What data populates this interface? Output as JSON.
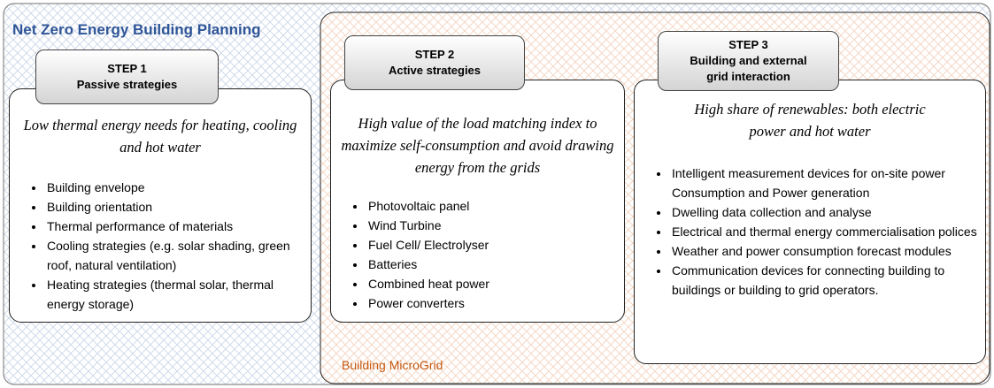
{
  "title": "Net Zero Energy Building Planning",
  "microgrid_label": "Building MicroGrid",
  "steps": [
    {
      "heading": [
        "STEP 1",
        "Passive strategies"
      ],
      "description": "Low thermal energy needs for heating, cooling and hot water",
      "items": [
        "Building envelope",
        "Building orientation",
        "Thermal performance of materials",
        "Cooling strategies (e.g. solar shading, green roof, natural ventilation)",
        "Heating strategies (thermal solar, thermal energy storage)"
      ]
    },
    {
      "heading": [
        "STEP 2",
        "Active strategies"
      ],
      "description": "High value of the load matching index to maximize self-consumption and avoid drawing energy from the grids",
      "items": [
        "Photovoltaic panel",
        "Wind Turbine",
        "Fuel Cell/ Electrolyser",
        "Batteries",
        "Combined heat power",
        "Power converters"
      ]
    },
    {
      "heading": [
        "STEP 3",
        "Building and external",
        "grid interaction"
      ],
      "description": "High share of renewables: both electric power and hot water",
      "items": [
        "Intelligent  measurement devices for on-site power Consumption and Power generation",
        "Dwelling data collection and analyse",
        "Electrical and thermal energy commercialisation polices",
        "Weather and power consumption forecast modules",
        "Communication devices for connecting building to buildings or building to grid operators."
      ]
    }
  ]
}
